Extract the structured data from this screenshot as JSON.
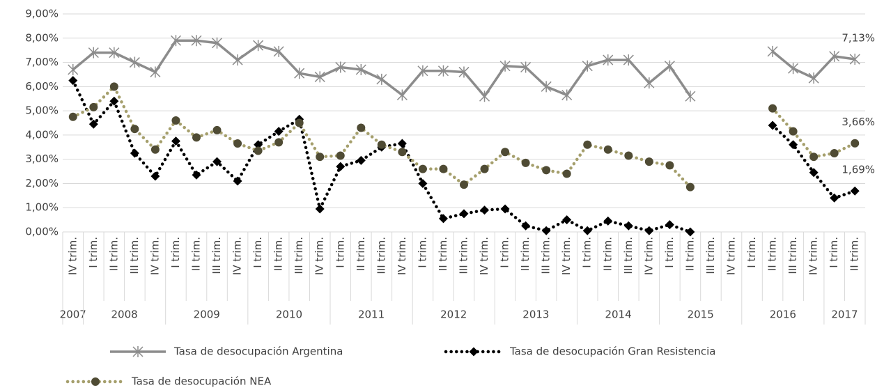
{
  "chart_data": {
    "type": "line",
    "categories": [
      "IV trim.",
      "I trim.",
      "II trim.",
      "III trim.",
      "IV trim.",
      "I trim.",
      "II trim.",
      "III trim.",
      "IV trim.",
      "I trim.",
      "II trim.",
      "III trim.",
      "IV trim.",
      "I trim.",
      "II trim.",
      "III trim.",
      "IV trim.",
      "I trim.",
      "II trim.",
      "III trim.",
      "IV trim.",
      "I trim.",
      "II trim.",
      "III trim.",
      "IV trim.",
      "I trim.",
      "II trim.",
      "III trim.",
      "IV trim.",
      "I trim.",
      "II trim.",
      "III trim.",
      "IV trim.",
      "I trim.",
      "II trim.",
      "III trim.",
      "IV trim.",
      "I trim.",
      "II trim."
    ],
    "category_groups": [
      {
        "label": "2007",
        "count": 1
      },
      {
        "label": "2008",
        "count": 4
      },
      {
        "label": "2009",
        "count": 4
      },
      {
        "label": "2010",
        "count": 4
      },
      {
        "label": "2011",
        "count": 4
      },
      {
        "label": "2012",
        "count": 4
      },
      {
        "label": "2013",
        "count": 4
      },
      {
        "label": "2014",
        "count": 4
      },
      {
        "label": "2015",
        "count": 4
      },
      {
        "label": "2016",
        "count": 4
      },
      {
        "label": "2017",
        "count": 2
      }
    ],
    "series": [
      {
        "name": "Tasa de desocupación Argentina",
        "color": "#8c8c8c",
        "marker": "star",
        "marker_color": "#8c8c8c",
        "dash": "solid",
        "values": [
          6.7,
          7.4,
          7.4,
          7.0,
          6.6,
          7.9,
          7.9,
          7.8,
          7.1,
          7.7,
          7.45,
          6.55,
          6.4,
          6.8,
          6.7,
          6.3,
          5.65,
          6.65,
          6.65,
          6.6,
          5.6,
          6.85,
          6.8,
          6.0,
          5.65,
          6.85,
          7.1,
          7.1,
          6.15,
          6.85,
          5.6,
          null,
          null,
          null,
          7.45,
          6.75,
          6.35,
          7.25,
          7.13
        ],
        "value_labels": [
          null,
          null,
          null,
          null,
          null,
          null,
          null,
          null,
          null,
          null,
          null,
          null,
          null,
          null,
          null,
          null,
          null,
          null,
          null,
          null,
          null,
          null,
          null,
          null,
          null,
          null,
          null,
          null,
          null,
          null,
          null,
          null,
          null,
          null,
          null,
          null,
          null,
          null,
          "7,13%"
        ]
      },
      {
        "name": "Tasa de desocupación Gran Resistencia",
        "color": "#000000",
        "marker": "diamond",
        "marker_color": "#000000",
        "dash": "dotted",
        "values": [
          6.25,
          4.45,
          5.4,
          3.25,
          2.3,
          3.75,
          2.35,
          2.9,
          2.1,
          3.6,
          4.15,
          4.65,
          0.95,
          2.7,
          2.95,
          3.5,
          3.65,
          2.0,
          0.55,
          0.75,
          0.9,
          0.95,
          0.25,
          0.05,
          0.5,
          0.05,
          0.45,
          0.25,
          0.05,
          0.3,
          0.0,
          null,
          null,
          null,
          4.4,
          3.6,
          2.45,
          1.4,
          1.69
        ],
        "value_labels": [
          null,
          null,
          null,
          null,
          null,
          null,
          null,
          null,
          null,
          null,
          null,
          null,
          null,
          null,
          null,
          null,
          null,
          null,
          null,
          null,
          null,
          null,
          null,
          null,
          null,
          null,
          null,
          null,
          null,
          null,
          null,
          null,
          null,
          null,
          null,
          null,
          null,
          null,
          "1,69%"
        ]
      },
      {
        "name": "Tasa de desocupación NEA",
        "color": "#a59f6c",
        "marker": "circle",
        "marker_color": "#4f4b34",
        "dash": "dotted",
        "values": [
          4.75,
          5.15,
          6.0,
          4.25,
          3.4,
          4.6,
          3.9,
          4.2,
          3.65,
          3.35,
          3.7,
          4.5,
          3.1,
          3.15,
          4.3,
          3.6,
          3.3,
          2.6,
          2.6,
          1.95,
          2.6,
          3.3,
          2.85,
          2.55,
          2.4,
          3.6,
          3.4,
          3.15,
          2.9,
          2.75,
          1.85,
          null,
          null,
          null,
          5.1,
          4.15,
          3.1,
          3.25,
          3.66
        ],
        "value_labels": [
          null,
          null,
          null,
          null,
          null,
          null,
          null,
          null,
          null,
          null,
          null,
          null,
          null,
          null,
          null,
          null,
          null,
          null,
          null,
          null,
          null,
          null,
          null,
          null,
          null,
          null,
          null,
          null,
          null,
          null,
          null,
          null,
          null,
          null,
          null,
          null,
          null,
          null,
          "3,66%"
        ]
      }
    ],
    "ylim": [
      0,
      9
    ],
    "yticks": [
      {
        "value": 0,
        "label": "0,00%"
      },
      {
        "value": 1,
        "label": "1,00%"
      },
      {
        "value": 2,
        "label": "2,00%"
      },
      {
        "value": 3,
        "label": "3,00%"
      },
      {
        "value": 4,
        "label": "4,00%"
      },
      {
        "value": 5,
        "label": "5,00%"
      },
      {
        "value": 6,
        "label": "6,00%"
      },
      {
        "value": 7,
        "label": "7,00%"
      },
      {
        "value": 8,
        "label": "8,00%"
      },
      {
        "value": 9,
        "label": "9,00%"
      }
    ],
    "grid": true,
    "legend": "bottom"
  }
}
